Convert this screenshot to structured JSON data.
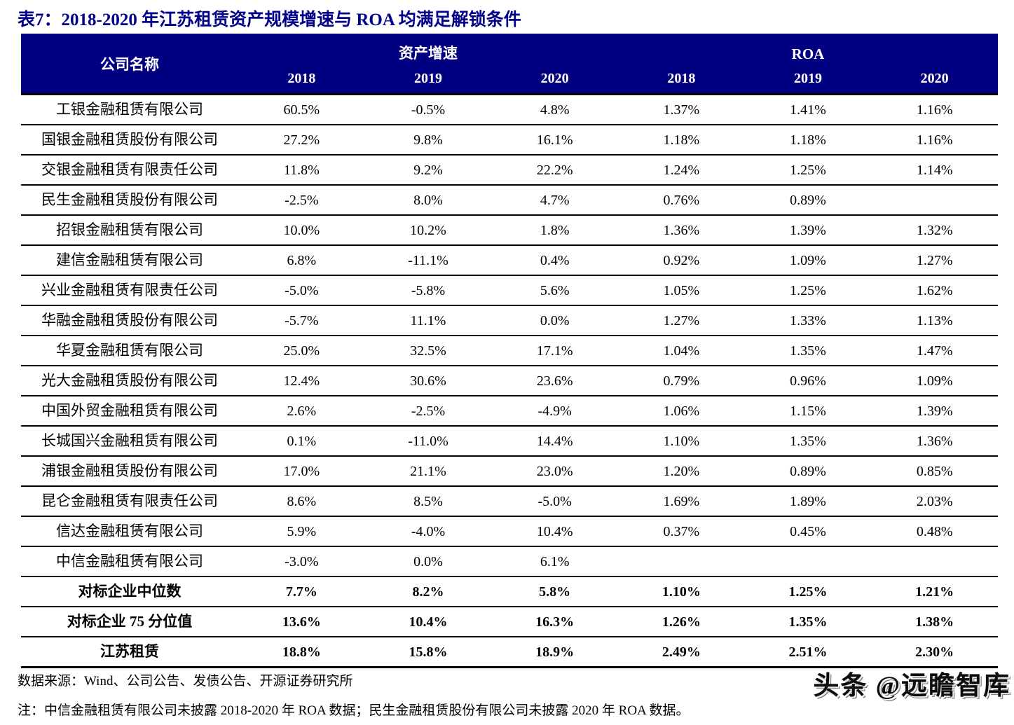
{
  "title": "表7：2018-2020 年江苏租赁资产规模增速与 ROA 均满足解锁条件",
  "colors": {
    "header_bg": "#000080",
    "title_text": "#00008B",
    "border": "#000000"
  },
  "table": {
    "company_header": "公司名称",
    "group_asset_growth": "资产增速",
    "group_roa": "ROA",
    "years": [
      "2018",
      "2019",
      "2020",
      "2018",
      "2019",
      "2020"
    ],
    "rows": [
      {
        "name": "工银金融租赁有限公司",
        "values": [
          "60.5%",
          "-0.5%",
          "4.8%",
          "1.37%",
          "1.41%",
          "1.16%"
        ],
        "bold": false
      },
      {
        "name": "国银金融租赁股份有限公司",
        "values": [
          "27.2%",
          "9.8%",
          "16.1%",
          "1.18%",
          "1.18%",
          "1.16%"
        ],
        "bold": false
      },
      {
        "name": "交银金融租赁有限责任公司",
        "values": [
          "11.8%",
          "9.2%",
          "22.2%",
          "1.24%",
          "1.25%",
          "1.14%"
        ],
        "bold": false
      },
      {
        "name": "民生金融租赁股份有限公司",
        "values": [
          "-2.5%",
          "8.0%",
          "4.7%",
          "0.76%",
          "0.89%",
          ""
        ],
        "bold": false
      },
      {
        "name": "招银金融租赁有限公司",
        "values": [
          "10.0%",
          "10.2%",
          "1.8%",
          "1.36%",
          "1.39%",
          "1.32%"
        ],
        "bold": false
      },
      {
        "name": "建信金融租赁有限公司",
        "values": [
          "6.8%",
          "-11.1%",
          "0.4%",
          "0.92%",
          "1.09%",
          "1.27%"
        ],
        "bold": false
      },
      {
        "name": "兴业金融租赁有限责任公司",
        "values": [
          "-5.0%",
          "-5.8%",
          "5.6%",
          "1.05%",
          "1.25%",
          "1.62%"
        ],
        "bold": false
      },
      {
        "name": "华融金融租赁股份有限公司",
        "values": [
          "-5.7%",
          "11.1%",
          "0.0%",
          "1.27%",
          "1.33%",
          "1.13%"
        ],
        "bold": false
      },
      {
        "name": "华夏金融租赁有限公司",
        "values": [
          "25.0%",
          "32.5%",
          "17.1%",
          "1.04%",
          "1.35%",
          "1.47%"
        ],
        "bold": false
      },
      {
        "name": "光大金融租赁股份有限公司",
        "values": [
          "12.4%",
          "30.6%",
          "23.6%",
          "0.79%",
          "0.96%",
          "1.09%"
        ],
        "bold": false
      },
      {
        "name": "中国外贸金融租赁有限公司",
        "values": [
          "2.6%",
          "-2.5%",
          "-4.9%",
          "1.06%",
          "1.15%",
          "1.39%"
        ],
        "bold": false
      },
      {
        "name": "长城国兴金融租赁有限公司",
        "values": [
          "0.1%",
          "-11.0%",
          "14.4%",
          "1.10%",
          "1.35%",
          "1.36%"
        ],
        "bold": false
      },
      {
        "name": "浦银金融租赁股份有限公司",
        "values": [
          "17.0%",
          "21.1%",
          "23.0%",
          "1.20%",
          "0.89%",
          "0.85%"
        ],
        "bold": false
      },
      {
        "name": "昆仑金融租赁有限责任公司",
        "values": [
          "8.6%",
          "8.5%",
          "-5.0%",
          "1.69%",
          "1.89%",
          "2.03%"
        ],
        "bold": false
      },
      {
        "name": "信达金融租赁有限公司",
        "values": [
          "5.9%",
          "-4.0%",
          "10.4%",
          "0.37%",
          "0.45%",
          "0.48%"
        ],
        "bold": false
      },
      {
        "name": "中信金融租赁有限公司",
        "values": [
          "-3.0%",
          "0.0%",
          "6.1%",
          "",
          "",
          ""
        ],
        "bold": false
      },
      {
        "name": "对标企业中位数",
        "values": [
          "7.7%",
          "8.2%",
          "5.8%",
          "1.10%",
          "1.25%",
          "1.21%"
        ],
        "bold": true
      },
      {
        "name": "对标企业 75 分位值",
        "values": [
          "13.6%",
          "10.4%",
          "16.3%",
          "1.26%",
          "1.35%",
          "1.38%"
        ],
        "bold": true
      },
      {
        "name": "江苏租赁",
        "values": [
          "18.8%",
          "15.8%",
          "18.9%",
          "2.49%",
          "2.51%",
          "2.30%"
        ],
        "bold": true
      }
    ]
  },
  "footer": {
    "source": "数据来源：Wind、公司公告、发债公告、开源证券研究所",
    "note": "注：中信金融租赁有限公司未披露 2018-2020 年 ROA 数据；民生金融租赁股份有限公司未披露 2020 年 ROA 数据。",
    "watermark": "头条 @远瞻智库"
  }
}
